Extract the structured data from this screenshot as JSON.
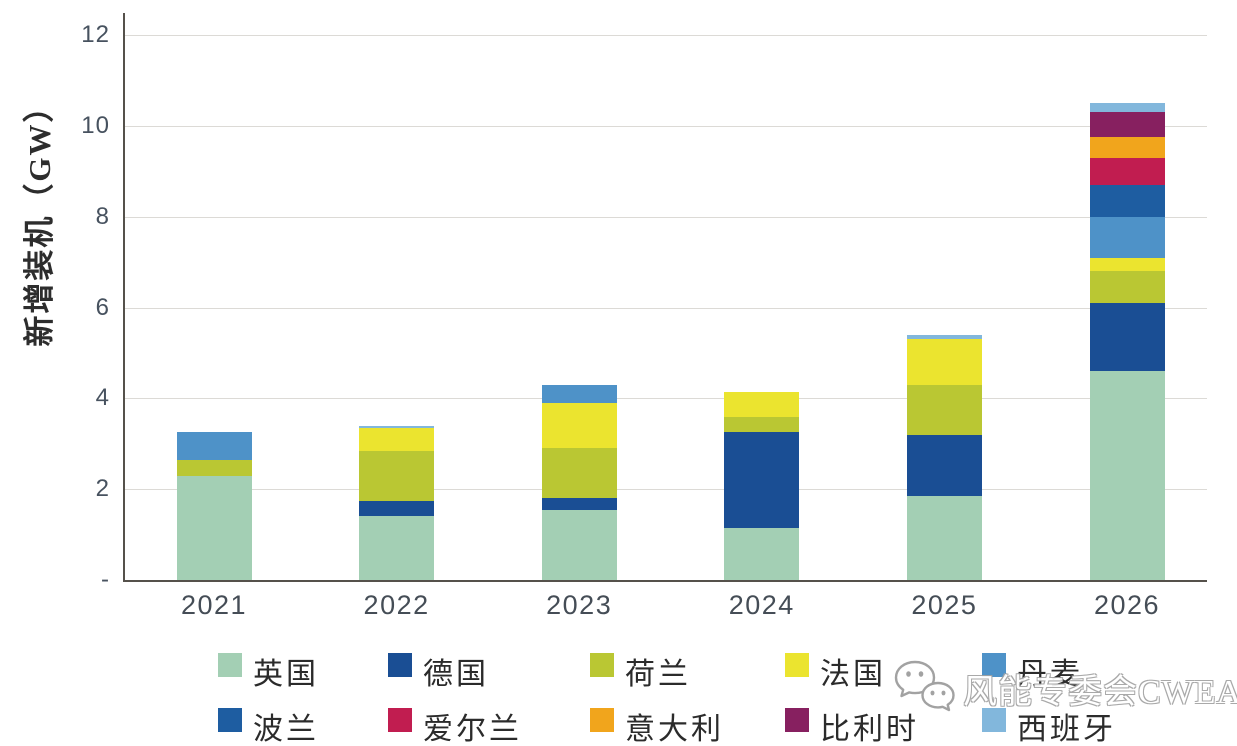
{
  "watermark": {
    "icon": "wechat-icon",
    "text": "风能专委会CWEA"
  },
  "chart_data": {
    "type": "bar",
    "stacked": true,
    "title": "",
    "xlabel": "",
    "ylabel": "新增装机（GW）",
    "categories": [
      "2021",
      "2022",
      "2023",
      "2024",
      "2025",
      "2026"
    ],
    "y_axis": {
      "min": 0,
      "max": 12,
      "tick_interval": 2,
      "tick_labels": [
        "-",
        "2",
        "4",
        "6",
        "8",
        "10",
        "12"
      ]
    },
    "grid": "horizontal",
    "legend_position": "bottom",
    "series": [
      {
        "name": "英国",
        "color": "#a3cfb4",
        "values": [
          2.3,
          1.4,
          1.55,
          1.15,
          1.85,
          4.6
        ]
      },
      {
        "name": "德国",
        "color": "#1a4e94",
        "values": [
          0,
          0.35,
          0.25,
          2.1,
          1.35,
          1.5
        ]
      },
      {
        "name": "荷兰",
        "color": "#bac733",
        "values": [
          0.35,
          1.1,
          1.1,
          0.35,
          1.1,
          0.7
        ]
      },
      {
        "name": "法国",
        "color": "#ebe42f",
        "values": [
          0,
          0.5,
          1.0,
          0.55,
          1.0,
          0.3
        ]
      },
      {
        "name": "丹麦",
        "color": "#4e92c8",
        "values": [
          0.6,
          0,
          0.4,
          0,
          0,
          0.9
        ]
      },
      {
        "name": "波兰",
        "color": "#1e5da1",
        "values": [
          0,
          0,
          0,
          0,
          0,
          0.7
        ]
      },
      {
        "name": "爱尔兰",
        "color": "#c11d50",
        "values": [
          0,
          0,
          0,
          0,
          0,
          0.6
        ]
      },
      {
        "name": "意大利",
        "color": "#f1a51c",
        "values": [
          0,
          0,
          0,
          0,
          0,
          0.45
        ]
      },
      {
        "name": "比利时",
        "color": "#872060",
        "values": [
          0,
          0,
          0,
          0,
          0,
          0.55
        ]
      },
      {
        "name": "西班牙",
        "color": "#82b7dc",
        "values": [
          0,
          0.05,
          0,
          0,
          0.1,
          0.2
        ]
      }
    ],
    "totals": [
      3.25,
      3.4,
      4.3,
      4.15,
      5.4,
      10.5
    ]
  }
}
